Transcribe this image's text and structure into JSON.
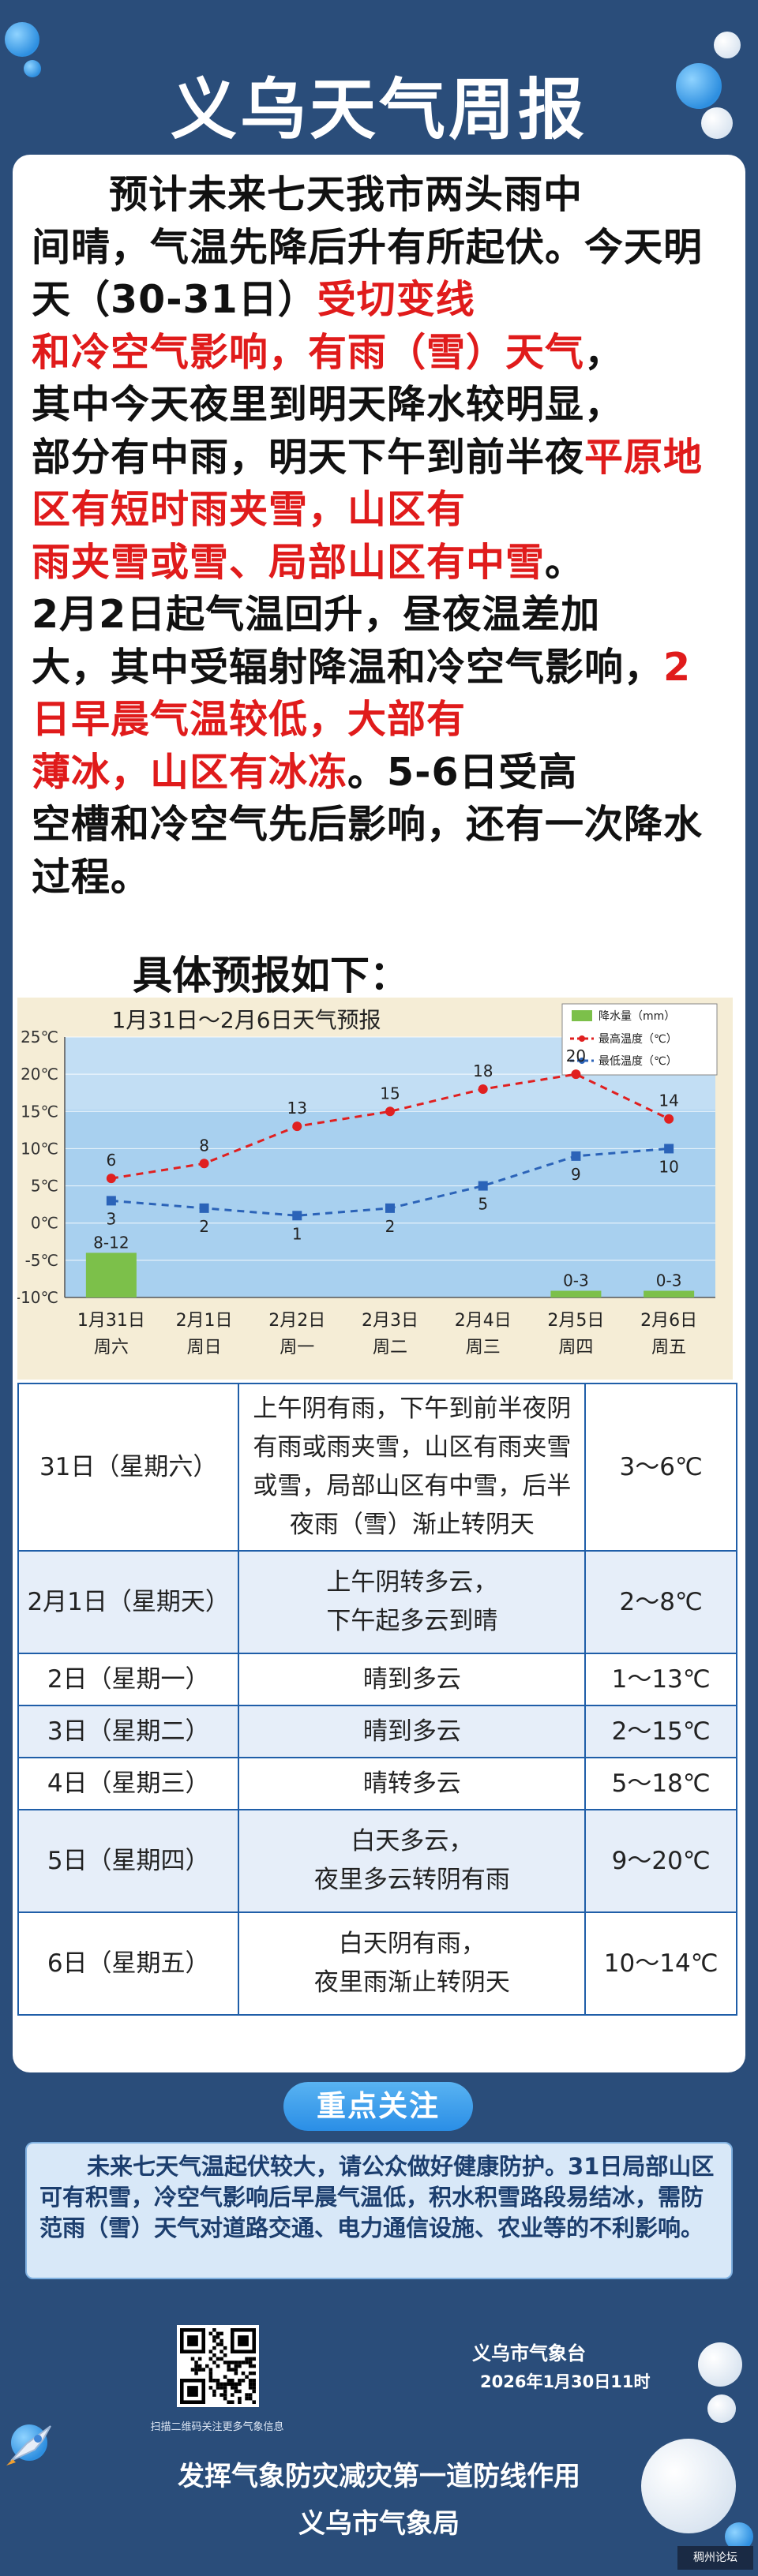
{
  "header": {
    "title": "义乌天气周报"
  },
  "intro": {
    "segments": [
      {
        "text": "预计未来七天我市两头雨中",
        "red": false
      },
      {
        "text": "间晴，气温先降后升有所起伏。",
        "red": false
      },
      {
        "text": "今天明天（30-31日）",
        "red": false
      },
      {
        "text": "受切变线",
        "red": true
      },
      {
        "text": "和冷空气影响，有雨（雪）天气",
        "red": true
      },
      {
        "text": "，",
        "red": false
      },
      {
        "text": "其中今天夜里到明天降水较明显，",
        "red": false
      },
      {
        "text": "部分有中雨，明天下午到前半夜",
        "red": false
      },
      {
        "text": "平原地区有短时雨夹雪，山区有",
        "red": true
      },
      {
        "text": "雨夹雪或雪、局部山区有中雪",
        "red": true
      },
      {
        "text": "。",
        "red": false
      },
      {
        "text": "2月2日起气温回升，昼夜温差加",
        "red": false
      },
      {
        "text": "大，其中受辐射降温和冷空气影",
        "red": false
      },
      {
        "text": "响，",
        "red": false
      },
      {
        "text": "2日早晨气温较低，大部有",
        "red": true
      },
      {
        "text": "薄冰，山区有冰冻",
        "red": true
      },
      {
        "text": "。5-6日受高",
        "red": false
      },
      {
        "text": "空槽和冷空气先后影响，还有一",
        "red": false
      },
      {
        "text": "次降水过程。",
        "red": false
      }
    ],
    "breaks": [
      0,
      1,
      4,
      6,
      7,
      9,
      11,
      12,
      15,
      17
    ]
  },
  "subhead": "具体预报如下：",
  "chart_data": {
    "type": "line",
    "title": "1月31日～2月6日天气预报",
    "legend": [
      "降水量（mm）",
      "最高温度（℃）",
      "最低温度（℃）"
    ],
    "categories": [
      [
        "1月31日",
        "周六"
      ],
      [
        "2月1日",
        "周日"
      ],
      [
        "2月2日",
        "周一"
      ],
      [
        "2月3日",
        "周二"
      ],
      [
        "2月4日",
        "周三"
      ],
      [
        "2月5日",
        "周四"
      ],
      [
        "2月6日",
        "周五"
      ]
    ],
    "ylim": [
      -10,
      25
    ],
    "yticks": [
      "25℃",
      "20℃",
      "15℃",
      "10℃",
      "5℃",
      "0℃",
      "-5℃",
      "-10℃"
    ],
    "series": [
      {
        "name": "最高温度（℃）",
        "values": [
          6,
          8,
          13,
          15,
          18,
          20,
          14
        ],
        "color": "#e02020"
      },
      {
        "name": "最低温度（℃）",
        "values": [
          3,
          2,
          1,
          2,
          5,
          9,
          10
        ],
        "color": "#2b63b8"
      }
    ],
    "precip": [
      {
        "label": "8-12",
        "value": 10
      },
      {
        "label": "",
        "value": 0
      },
      {
        "label": "",
        "value": 0
      },
      {
        "label": "",
        "value": 0
      },
      {
        "label": "",
        "value": 0
      },
      {
        "label": "0-3",
        "value": 1.5
      },
      {
        "label": "0-3",
        "value": 1.5
      }
    ],
    "colors": {
      "plot_bg": "#a8d0ef",
      "bar": "#7cc04a",
      "bg": "#f5edd6"
    }
  },
  "forecast": [
    {
      "date": "31日（星期六）",
      "weather": [
        "上午阴有雨，下午到前半夜阴",
        "有雨或雨夹雪，山区有雨夹雪",
        "或雪，局部山区有中雪，后半",
        "夜雨（雪）渐止转阴天"
      ],
      "temp": "3～6℃"
    },
    {
      "date": "2月1日（星期天）",
      "weather": [
        "上午阴转多云，",
        "下午起多云到晴"
      ],
      "temp": "2～8℃"
    },
    {
      "date": "2日（星期一）",
      "weather": [
        "晴到多云"
      ],
      "temp": "1～13℃"
    },
    {
      "date": "3日（星期二）",
      "weather": [
        "晴到多云"
      ],
      "temp": "2～15℃"
    },
    {
      "date": "4日（星期三）",
      "weather": [
        "晴转多云"
      ],
      "temp": "5～18℃"
    },
    {
      "date": "5日（星期四）",
      "weather": [
        "白天多云，",
        "夜里多云转阴有雨"
      ],
      "temp": "9～20℃"
    },
    {
      "date": "6日（星期五）",
      "weather": [
        "白天阴有雨，",
        "夜里雨渐止转阴天"
      ],
      "temp": "10～14℃"
    }
  ],
  "focus": {
    "label": "重点关注",
    "text": "未来七天气温起伏较大，请公众做好健康防护。31日局部山区可有积雪，冷空气影响后早晨气温低，积水积雪路段易结冰，需防范雨（雪）天气对道路交通、电力通信设施、农业等的不利影响。"
  },
  "footer": {
    "qr_caption": "扫描二维码关注更多气象信息",
    "signer": "义乌市气象台",
    "date": "2026年1月30日11时",
    "slogan": "发挥气象防灾减灾第一道防线作用",
    "bureau": "义乌市气象局",
    "watermark": "稠州论坛"
  }
}
